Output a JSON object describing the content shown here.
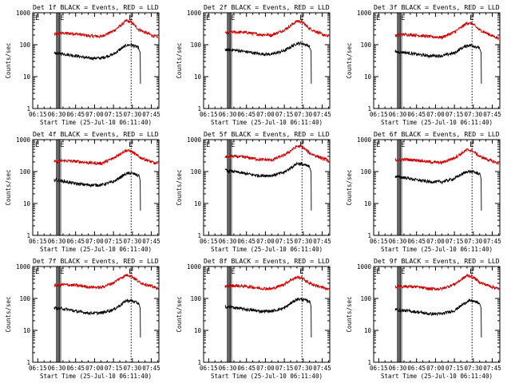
{
  "figure": {
    "xlabel": "Start Time (25-Jul-10 06:11:40)",
    "ylabel": "Counts/sec",
    "x_tick_labels": [
      "06:15",
      "06:30",
      "06:45",
      "07:00",
      "07:15",
      "07:30",
      "07:45"
    ],
    "y_tick_labels": [
      "1",
      "10",
      "100",
      "1000"
    ],
    "flag_label": "E",
    "colors": {
      "events": "#000000",
      "lld": "#d00000",
      "axes": "#000000",
      "background": "#ffffff"
    }
  },
  "chart_data": [
    {
      "type": "line",
      "title": "Det 1f BLACK = Events, RED = LLD",
      "yscale": "log",
      "ylim": [
        1,
        1000
      ],
      "xlim": [
        "06:11",
        "07:51"
      ],
      "x": [
        "06:28",
        "06:35",
        "06:45",
        "06:55",
        "07:05",
        "07:15",
        "07:20",
        "07:25",
        "07:29",
        "07:35",
        "07:45",
        "07:50"
      ],
      "series": [
        {
          "name": "LLD",
          "values": [
            210,
            230,
            220,
            190,
            180,
            270,
            380,
            560,
            510,
            300,
            200,
            170
          ]
        },
        {
          "name": "Events",
          "values": [
            55,
            52,
            45,
            38,
            38,
            50,
            70,
            95,
            100,
            80,
            null,
            null
          ]
        }
      ],
      "flags": [
        "06:30",
        "06:32",
        "07:29"
      ]
    },
    {
      "type": "line",
      "title": "Det 2f BLACK = Events, RED = LLD",
      "yscale": "log",
      "ylim": [
        1,
        1000
      ],
      "xlim": [
        "06:11",
        "07:51"
      ],
      "x": [
        "06:28",
        "06:35",
        "06:45",
        "06:55",
        "07:05",
        "07:15",
        "07:20",
        "07:25",
        "07:29",
        "07:35",
        "07:45",
        "07:50"
      ],
      "series": [
        {
          "name": "LLD",
          "values": [
            230,
            250,
            240,
            210,
            200,
            290,
            400,
            550,
            520,
            320,
            210,
            180
          ]
        },
        {
          "name": "Events",
          "values": [
            70,
            68,
            60,
            52,
            50,
            65,
            85,
            110,
            110,
            90,
            null,
            null
          ]
        }
      ],
      "flags": [
        "06:30",
        "06:32",
        "07:29"
      ]
    },
    {
      "type": "line",
      "title": "Det 3f BLACK = Events, RED = LLD",
      "yscale": "log",
      "ylim": [
        1,
        1000
      ],
      "xlim": [
        "06:11",
        "07:51"
      ],
      "x": [
        "06:28",
        "06:35",
        "06:45",
        "06:55",
        "07:05",
        "07:15",
        "07:20",
        "07:25",
        "07:29",
        "07:35",
        "07:45",
        "07:50"
      ],
      "series": [
        {
          "name": "LLD",
          "values": [
            190,
            210,
            200,
            180,
            170,
            250,
            340,
            480,
            460,
            290,
            190,
            160
          ]
        },
        {
          "name": "Events",
          "values": [
            60,
            58,
            50,
            45,
            45,
            55,
            75,
            95,
            95,
            80,
            null,
            null
          ]
        }
      ],
      "flags": [
        "06:30",
        "06:32",
        "07:29"
      ]
    },
    {
      "type": "line",
      "title": "Det 4f BLACK = Events, RED = LLD",
      "yscale": "log",
      "ylim": [
        1,
        1000
      ],
      "xlim": [
        "06:11",
        "07:51"
      ],
      "x": [
        "06:28",
        "06:35",
        "06:45",
        "06:55",
        "07:05",
        "07:15",
        "07:20",
        "07:25",
        "07:29",
        "07:35",
        "07:45",
        "07:50"
      ],
      "series": [
        {
          "name": "LLD",
          "values": [
            200,
            220,
            210,
            190,
            180,
            260,
            360,
            460,
            440,
            290,
            200,
            170
          ]
        },
        {
          "name": "Events",
          "values": [
            55,
            50,
            42,
            38,
            38,
            48,
            65,
            85,
            90,
            75,
            null,
            null
          ]
        }
      ],
      "flags": [
        "06:30",
        "06:32",
        "07:29"
      ]
    },
    {
      "type": "line",
      "title": "Det 5f BLACK = Events, RED = LLD",
      "yscale": "log",
      "ylim": [
        1,
        1000
      ],
      "xlim": [
        "06:11",
        "07:51"
      ],
      "x": [
        "06:28",
        "06:35",
        "06:45",
        "06:55",
        "07:05",
        "07:15",
        "07:20",
        "07:25",
        "07:29",
        "07:35",
        "07:45",
        "07:50"
      ],
      "series": [
        {
          "name": "LLD",
          "values": [
            290,
            300,
            280,
            240,
            230,
            330,
            450,
            620,
            600,
            380,
            260,
            230
          ]
        },
        {
          "name": "Events",
          "values": [
            110,
            100,
            85,
            75,
            75,
            95,
            130,
            180,
            170,
            140,
            null,
            null
          ]
        }
      ],
      "flags": [
        "06:30",
        "06:32",
        "07:29"
      ]
    },
    {
      "type": "line",
      "title": "Det 6f BLACK = Events, RED = LLD",
      "yscale": "log",
      "ylim": [
        1,
        1000
      ],
      "xlim": [
        "06:11",
        "07:51"
      ],
      "x": [
        "06:28",
        "06:35",
        "06:45",
        "06:55",
        "07:05",
        "07:15",
        "07:20",
        "07:25",
        "07:29",
        "07:35",
        "07:45",
        "07:50"
      ],
      "series": [
        {
          "name": "LLD",
          "values": [
            230,
            240,
            230,
            200,
            190,
            270,
            360,
            480,
            460,
            300,
            210,
            180
          ]
        },
        {
          "name": "Events",
          "values": [
            70,
            65,
            55,
            48,
            48,
            60,
            80,
            100,
            100,
            85,
            null,
            null
          ]
        }
      ],
      "flags": [
        "06:30",
        "06:32",
        "07:29"
      ]
    },
    {
      "type": "line",
      "title": "Det 7f BLACK = Events, RED = LLD",
      "yscale": "log",
      "ylim": [
        1,
        1000
      ],
      "xlim": [
        "06:11",
        "07:51"
      ],
      "x": [
        "06:28",
        "06:35",
        "06:45",
        "06:55",
        "07:05",
        "07:15",
        "07:20",
        "07:25",
        "07:29",
        "07:35",
        "07:45",
        "07:50"
      ],
      "series": [
        {
          "name": "LLD",
          "values": [
            250,
            270,
            260,
            230,
            220,
            310,
            420,
            540,
            520,
            330,
            240,
            210
          ]
        },
        {
          "name": "Events",
          "values": [
            50,
            48,
            40,
            35,
            35,
            45,
            60,
            85,
            85,
            70,
            null,
            null
          ]
        }
      ],
      "flags": [
        "06:30",
        "06:32",
        "07:29"
      ]
    },
    {
      "type": "line",
      "title": "Det 8f BLACK = Events, RED = LLD",
      "yscale": "log",
      "ylim": [
        1,
        1000
      ],
      "xlim": [
        "06:11",
        "07:51"
      ],
      "x": [
        "06:28",
        "06:35",
        "06:45",
        "06:55",
        "07:05",
        "07:15",
        "07:20",
        "07:25",
        "07:29",
        "07:35",
        "07:45",
        "07:50"
      ],
      "series": [
        {
          "name": "LLD",
          "values": [
            240,
            250,
            240,
            210,
            200,
            280,
            380,
            460,
            440,
            300,
            220,
            190
          ]
        },
        {
          "name": "Events",
          "values": [
            55,
            52,
            45,
            40,
            40,
            50,
            70,
            95,
            95,
            80,
            null,
            null
          ]
        }
      ],
      "flags": [
        "06:30",
        "06:32",
        "07:29"
      ]
    },
    {
      "type": "line",
      "title": "Det 9f BLACK = Events, RED = LLD",
      "yscale": "log",
      "ylim": [
        1,
        1000
      ],
      "xlim": [
        "06:11",
        "07:51"
      ],
      "x": [
        "06:28",
        "06:35",
        "06:45",
        "06:55",
        "07:05",
        "07:15",
        "07:20",
        "07:25",
        "07:29",
        "07:35",
        "07:45",
        "07:50"
      ],
      "series": [
        {
          "name": "LLD",
          "values": [
            230,
            240,
            230,
            200,
            200,
            280,
            380,
            520,
            500,
            320,
            230,
            200
          ]
        },
        {
          "name": "Events",
          "values": [
            45,
            42,
            38,
            33,
            33,
            42,
            58,
            80,
            85,
            70,
            null,
            null
          ]
        }
      ],
      "flags": [
        "06:30",
        "06:32",
        "07:29"
      ]
    }
  ]
}
